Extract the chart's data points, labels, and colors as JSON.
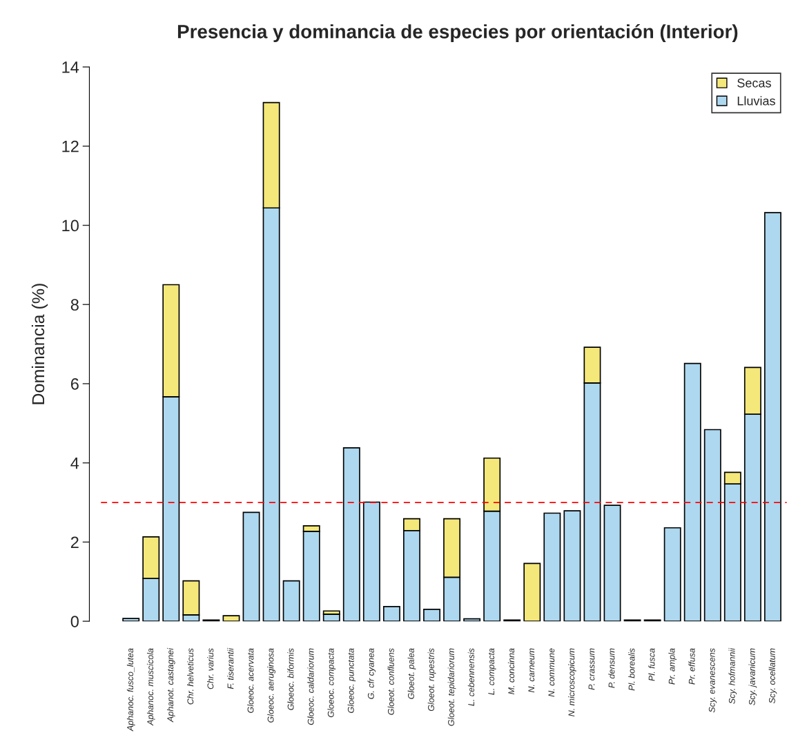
{
  "chart_data": {
    "type": "bar",
    "title": "Presencia y dominancia de especies por orientación (Interior)",
    "ylabel": "Dominancia (%)",
    "categories": [
      "Aphanoc. fusco_lutea",
      "Aphanoc. muscicola",
      "Aphanot. castagnei",
      "Chr. helveticus",
      "Chr. varius",
      "F. tiserantii",
      "Gloeoc. acervata",
      "Gloeoc. aeruginosa",
      "Gloeoc. biformis",
      "Gloeoc. caldariorum",
      "Gloeoc. compacta",
      "Gloeoc. punctata",
      "G. cfr cyanea",
      "Gloeot. confluens",
      "Gloeot. palea",
      "Gloeot. rupestris",
      "Gloeot. tepidariorum",
      "L. cebennensis",
      "L. compacta",
      "M. concinna",
      "N. carneum",
      "N. commune",
      "N. microscopicum",
      "P. crassum",
      "P. densum",
      "Pl. borealis",
      "Pl. fusca",
      "Pr. ampla",
      "Pr. effusa",
      "Scy. evanescens",
      "Scy. hofmannii",
      "Scy. javanicum",
      "Scy. ocellatum"
    ],
    "stacked": true,
    "series": [
      {
        "name": "Lluvias",
        "color": "#add8f0",
        "values": [
          0.07,
          1.08,
          5.67,
          0.16,
          0.03,
          0,
          2.75,
          10.44,
          1.02,
          2.27,
          0.18,
          4.38,
          3.01,
          0.37,
          2.29,
          0.3,
          1.11,
          0.06,
          2.78,
          0.03,
          0,
          2.73,
          2.79,
          6.02,
          2.93,
          0.03,
          0.03,
          2.36,
          6.51,
          4.84,
          3.47,
          5.23,
          10.32
        ]
      },
      {
        "name": "Secas",
        "color": "#f5e87a",
        "values": [
          0,
          1.05,
          2.83,
          0.86,
          0,
          0.14,
          0,
          2.66,
          0,
          0.14,
          0.08,
          0,
          0,
          0,
          0.3,
          0,
          1.48,
          0,
          1.34,
          0,
          1.46,
          0,
          0,
          0.9,
          0,
          0,
          0,
          0,
          0,
          0,
          0.29,
          1.18,
          0
        ]
      }
    ],
    "ylim": [
      0,
      14
    ],
    "yticks": [
      0,
      2,
      4,
      6,
      8,
      10,
      12,
      14
    ],
    "ref_lines": [
      {
        "axis": "y",
        "value": 3,
        "color": "#ff0000",
        "line_style": "dashed"
      }
    ],
    "legend": "top right",
    "grid": false
  }
}
